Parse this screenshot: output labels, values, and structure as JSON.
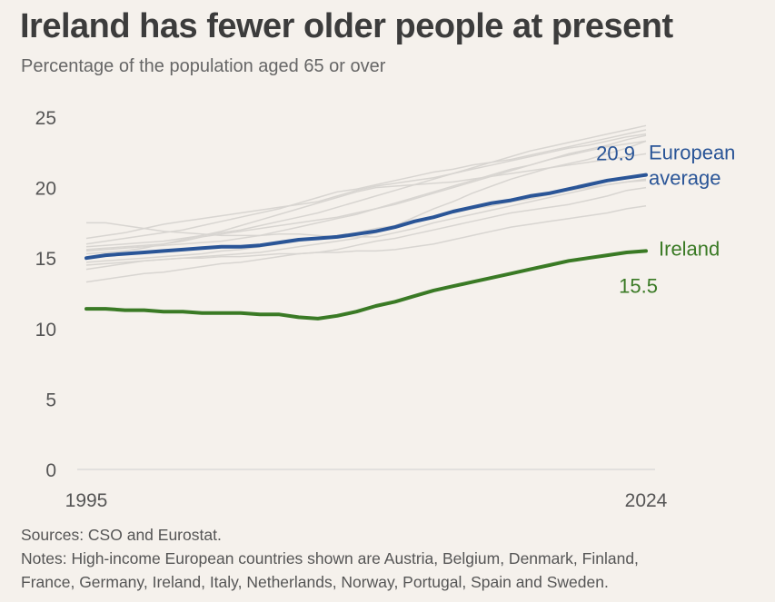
{
  "title": "Ireland has fewer older people at present",
  "subtitle": "Percentage of the population aged 65 or over",
  "sources": "Sources: CSO and Eurostat.",
  "notes_line1": "Notes: High-income European countries shown are Austria, Belgium, Denmark, Finland,",
  "notes_line2": "France, Germany, Ireland, Italy, Netherlands, Norway, Portugal, Spain and Sweden.",
  "colors": {
    "european": "#2a5597",
    "ireland": "#3a7a25",
    "background_lines": "#d8d5d1",
    "axis": "#cfcfcf"
  },
  "chart_data": {
    "type": "line",
    "title": "Ireland has fewer older people at present",
    "subtitle": "Percentage of the population aged 65 or over",
    "xlim": [
      1995,
      2024
    ],
    "ylim": [
      0,
      25
    ],
    "x_ticks": [
      "1995",
      "2024"
    ],
    "y_ticks": [
      "0",
      "5",
      "10",
      "15",
      "20",
      "25"
    ],
    "grid": false,
    "x": [
      1995,
      1996,
      1997,
      1998,
      1999,
      2000,
      2001,
      2002,
      2003,
      2004,
      2005,
      2006,
      2007,
      2008,
      2009,
      2010,
      2011,
      2012,
      2013,
      2014,
      2015,
      2016,
      2017,
      2018,
      2019,
      2020,
      2021,
      2022,
      2023,
      2024
    ],
    "series": [
      {
        "name": "European average",
        "label_line1": "European",
        "label_line2": "average",
        "end_value_label": "20.9",
        "values": [
          15.0,
          15.2,
          15.3,
          15.4,
          15.5,
          15.6,
          15.7,
          15.8,
          15.8,
          15.9,
          16.1,
          16.3,
          16.4,
          16.5,
          16.7,
          16.9,
          17.2,
          17.6,
          17.9,
          18.3,
          18.6,
          18.9,
          19.1,
          19.4,
          19.6,
          19.9,
          20.2,
          20.5,
          20.7,
          20.9
        ]
      },
      {
        "name": "Ireland",
        "label_line1": "Ireland",
        "end_value_label": "15.5",
        "values": [
          11.4,
          11.4,
          11.3,
          11.3,
          11.2,
          11.2,
          11.1,
          11.1,
          11.1,
          11.0,
          11.0,
          10.8,
          10.7,
          10.9,
          11.2,
          11.6,
          11.9,
          12.3,
          12.7,
          13.0,
          13.3,
          13.6,
          13.9,
          14.2,
          14.5,
          14.8,
          15.0,
          15.2,
          15.4,
          15.5
        ]
      }
    ],
    "background_series": [
      [
        15.5,
        15.6,
        15.7,
        15.8,
        15.9,
        16.0,
        16.1,
        16.2,
        16.4,
        16.6,
        16.9,
        17.2,
        17.5,
        17.8,
        18.1,
        18.5,
        18.9,
        19.3,
        19.7,
        20.1,
        20.5,
        20.9,
        21.3,
        21.6,
        22.0,
        22.3,
        22.6,
        22.9,
        23.1,
        23.3
      ],
      [
        16.0,
        16.2,
        16.4,
        16.6,
        16.8,
        17.0,
        17.3,
        17.6,
        17.9,
        18.2,
        18.5,
        18.9,
        19.3,
        19.7,
        19.9,
        20.2,
        20.5,
        20.8,
        21.1,
        21.3,
        21.6,
        21.8,
        22.0,
        22.3,
        22.6,
        22.9,
        23.2,
        23.5,
        23.8,
        24.1
      ],
      [
        17.5,
        17.5,
        17.3,
        17.1,
        16.9,
        16.8,
        16.7,
        16.6,
        16.6,
        16.6,
        16.7,
        16.7,
        16.6,
        16.5,
        16.5,
        16.5,
        16.8,
        17.1,
        17.5,
        17.8,
        18.1,
        18.4,
        18.7,
        19.0,
        19.3,
        19.6,
        19.9,
        20.2,
        20.4,
        20.5
      ],
      [
        14.2,
        14.4,
        14.6,
        14.8,
        14.9,
        15.0,
        15.1,
        15.2,
        15.3,
        15.4,
        15.6,
        15.8,
        16.0,
        16.2,
        16.4,
        16.8,
        17.3,
        17.9,
        18.5,
        19.0,
        19.6,
        20.1,
        20.6,
        21.0,
        21.4,
        21.7,
        22.0,
        22.4,
        22.8,
        23.3
      ],
      [
        13.3,
        13.5,
        13.7,
        13.9,
        14.0,
        14.2,
        14.4,
        14.6,
        14.7,
        14.9,
        15.1,
        15.3,
        15.4,
        15.6,
        15.9,
        16.2,
        16.4,
        16.7,
        17.0,
        17.3,
        17.6,
        17.9,
        18.2,
        18.4,
        18.6,
        18.8,
        19.1,
        19.4,
        19.8,
        20.0
      ],
      [
        14.7,
        14.8,
        14.9,
        15.0,
        15.1,
        15.2,
        15.3,
        15.5,
        15.6,
        15.8,
        16.0,
        16.2,
        16.4,
        16.6,
        16.8,
        17.1,
        17.3,
        17.6,
        17.9,
        18.2,
        18.5,
        18.7,
        19.0,
        19.2,
        19.5,
        19.8,
        20.0,
        20.2,
        20.4,
        20.6
      ],
      [
        15.3,
        15.4,
        15.5,
        15.7,
        16.0,
        16.3,
        16.6,
        16.9,
        17.3,
        17.7,
        18.1,
        18.5,
        18.9,
        19.3,
        19.7,
        20.0,
        20.1,
        20.2,
        20.3,
        20.4,
        20.6,
        20.8,
        21.0,
        21.2,
        21.4,
        21.6,
        21.8,
        22.0,
        22.2,
        22.4
      ],
      [
        16.4,
        16.6,
        16.8,
        17.1,
        17.4,
        17.6,
        17.8,
        18.0,
        18.2,
        18.4,
        18.6,
        18.8,
        19.0,
        19.4,
        19.8,
        20.1,
        20.3,
        20.5,
        20.7,
        21.0,
        21.3,
        21.6,
        21.9,
        22.2,
        22.5,
        22.8,
        23.0,
        23.3,
        23.6,
        23.8
      ],
      [
        15.6,
        15.7,
        15.8,
        15.9,
        16.0,
        16.2,
        16.5,
        16.7,
        16.9,
        17.1,
        17.3,
        17.5,
        17.7,
        17.9,
        18.2,
        18.5,
        18.8,
        19.2,
        19.6,
        20.0,
        20.4,
        20.8,
        21.2,
        21.6,
        22.0,
        22.4,
        22.7,
        23.0,
        23.4,
        23.7
      ],
      [
        15.8,
        15.9,
        16.0,
        16.1,
        16.2,
        16.4,
        16.6,
        16.8,
        17.0,
        17.3,
        17.6,
        17.9,
        18.2,
        18.6,
        19.0,
        19.4,
        19.8,
        20.2,
        20.6,
        21.0,
        21.4,
        21.8,
        22.2,
        22.6,
        22.9,
        23.2,
        23.5,
        23.8,
        24.1,
        24.4
      ],
      [
        14.5,
        14.6,
        14.7,
        14.8,
        14.9,
        15.0,
        15.0,
        15.1,
        15.1,
        15.2,
        15.3,
        15.3,
        15.4,
        15.4,
        15.5,
        15.5,
        15.6,
        15.8,
        16.0,
        16.3,
        16.6,
        16.9,
        17.2,
        17.4,
        17.6,
        17.8,
        18.0,
        18.2,
        18.5,
        18.7
      ]
    ]
  }
}
